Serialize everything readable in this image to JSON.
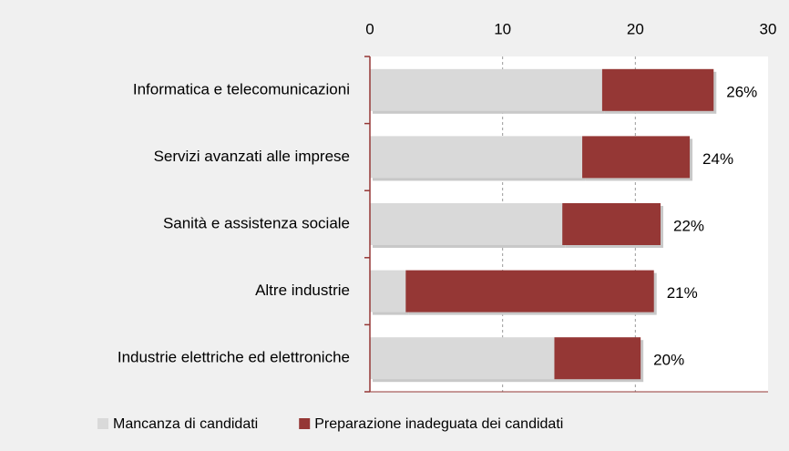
{
  "chart_data": {
    "type": "stacked_bar_horizontal",
    "categories": [
      "Informatica e telecomunicazioni",
      "Servizi avanzati alle imprese",
      "Sanità e assistenza sociale",
      "Altre industrie",
      "Industrie elettriche ed elettroniche"
    ],
    "series": [
      {
        "name": "Mancanza di candidati",
        "color": "#d9d9d9",
        "values": [
          17.5,
          16.0,
          14.5,
          2.7,
          13.9
        ]
      },
      {
        "name": "Preparazione inadeguata dei candidati",
        "color": "#953735",
        "values": [
          8.4,
          8.1,
          7.4,
          18.7,
          6.5
        ]
      }
    ],
    "total_labels": [
      "26%",
      "24%",
      "22%",
      "21%",
      "20%"
    ],
    "xlim": [
      0,
      30
    ],
    "xticks": [
      0,
      10,
      20,
      30
    ],
    "grid": true,
    "axis_color": "#953735"
  }
}
